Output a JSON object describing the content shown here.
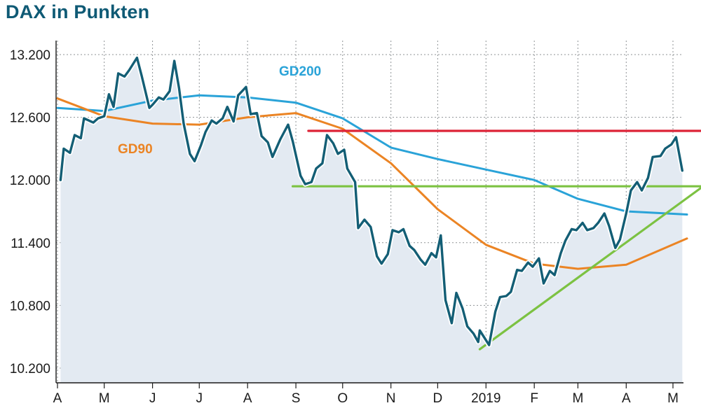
{
  "title": "DAX in Punkten",
  "chart_data": {
    "type": "line",
    "title": "DAX in Punkten",
    "xlabel": "",
    "ylabel": "",
    "x_range": [
      "2018-04-01",
      "2019-05-10"
    ],
    "ylim": [
      10000,
      13450
    ],
    "grid": true,
    "y_ticks": [
      13200,
      12600,
      12000,
      11400,
      10800,
      10200
    ],
    "y_tick_labels": [
      "13.200",
      "12.600",
      "12.000",
      "11.400",
      "10.800",
      "10.200"
    ],
    "x_ticks": [
      {
        "date": "2018-04-01",
        "label": "A"
      },
      {
        "date": "2018-05-01",
        "label": "M"
      },
      {
        "date": "2018-06-01",
        "label": "J"
      },
      {
        "date": "2018-07-01",
        "label": "J"
      },
      {
        "date": "2018-08-01",
        "label": "A"
      },
      {
        "date": "2018-09-01",
        "label": "S"
      },
      {
        "date": "2018-10-01",
        "label": "O"
      },
      {
        "date": "2018-11-01",
        "label": "N"
      },
      {
        "date": "2018-12-01",
        "label": "D"
      },
      {
        "date": "2019-01-01",
        "label": "2019"
      },
      {
        "date": "2019-02-01",
        "label": "F"
      },
      {
        "date": "2019-03-01",
        "label": "M"
      },
      {
        "date": "2019-04-01",
        "label": "A"
      },
      {
        "date": "2019-05-01",
        "label": "M"
      }
    ],
    "series": [
      {
        "name": "DAX",
        "color": "#135e75",
        "points": [
          [
            "2018-04-03",
            12000
          ],
          [
            "2018-04-05",
            12300
          ],
          [
            "2018-04-09",
            12260
          ],
          [
            "2018-04-12",
            12430
          ],
          [
            "2018-04-16",
            12400
          ],
          [
            "2018-04-18",
            12590
          ],
          [
            "2018-04-24",
            12550
          ],
          [
            "2018-04-27",
            12590
          ],
          [
            "2018-05-01",
            12610
          ],
          [
            "2018-05-04",
            12820
          ],
          [
            "2018-05-07",
            12700
          ],
          [
            "2018-05-10",
            13020
          ],
          [
            "2018-05-14",
            12990
          ],
          [
            "2018-05-17",
            13050
          ],
          [
            "2018-05-22",
            13170
          ],
          [
            "2018-05-25",
            13000
          ],
          [
            "2018-05-30",
            12690
          ],
          [
            "2018-06-01",
            12720
          ],
          [
            "2018-06-05",
            12790
          ],
          [
            "2018-06-08",
            12770
          ],
          [
            "2018-06-12",
            12850
          ],
          [
            "2018-06-15",
            13140
          ],
          [
            "2018-06-18",
            12880
          ],
          [
            "2018-06-21",
            12540
          ],
          [
            "2018-06-25",
            12250
          ],
          [
            "2018-06-28",
            12180
          ],
          [
            "2018-07-02",
            12330
          ],
          [
            "2018-07-05",
            12460
          ],
          [
            "2018-07-09",
            12570
          ],
          [
            "2018-07-12",
            12540
          ],
          [
            "2018-07-16",
            12590
          ],
          [
            "2018-07-19",
            12700
          ],
          [
            "2018-07-23",
            12560
          ],
          [
            "2018-07-26",
            12810
          ],
          [
            "2018-07-31",
            12890
          ],
          [
            "2018-08-03",
            12630
          ],
          [
            "2018-08-07",
            12640
          ],
          [
            "2018-08-10",
            12420
          ],
          [
            "2018-08-14",
            12360
          ],
          [
            "2018-08-17",
            12220
          ],
          [
            "2018-08-22",
            12390
          ],
          [
            "2018-08-27",
            12530
          ],
          [
            "2018-08-30",
            12370
          ],
          [
            "2018-09-04",
            12040
          ],
          [
            "2018-09-07",
            11960
          ],
          [
            "2018-09-11",
            11980
          ],
          [
            "2018-09-14",
            12110
          ],
          [
            "2018-09-18",
            12160
          ],
          [
            "2018-09-21",
            12430
          ],
          [
            "2018-09-25",
            12350
          ],
          [
            "2018-09-28",
            12250
          ],
          [
            "2018-10-02",
            12290
          ],
          [
            "2018-10-04",
            12110
          ],
          [
            "2018-10-09",
            11980
          ],
          [
            "2018-10-11",
            11540
          ],
          [
            "2018-10-15",
            11620
          ],
          [
            "2018-10-19",
            11550
          ],
          [
            "2018-10-23",
            11270
          ],
          [
            "2018-10-26",
            11200
          ],
          [
            "2018-10-30",
            11290
          ],
          [
            "2018-11-02",
            11520
          ],
          [
            "2018-11-06",
            11500
          ],
          [
            "2018-11-09",
            11530
          ],
          [
            "2018-11-13",
            11370
          ],
          [
            "2018-11-16",
            11330
          ],
          [
            "2018-11-20",
            11240
          ],
          [
            "2018-11-23",
            11190
          ],
          [
            "2018-11-27",
            11300
          ],
          [
            "2018-11-30",
            11260
          ],
          [
            "2018-12-03",
            11470
          ],
          [
            "2018-12-06",
            10850
          ],
          [
            "2018-12-10",
            10630
          ],
          [
            "2018-12-13",
            10920
          ],
          [
            "2018-12-17",
            10770
          ],
          [
            "2018-12-20",
            10600
          ],
          [
            "2018-12-24",
            10530
          ],
          [
            "2018-12-27",
            10450
          ],
          [
            "2018-12-28",
            10560
          ],
          [
            "2019-01-03",
            10420
          ],
          [
            "2019-01-07",
            10740
          ],
          [
            "2019-01-10",
            10880
          ],
          [
            "2019-01-14",
            10890
          ],
          [
            "2019-01-17",
            10930
          ],
          [
            "2019-01-21",
            11140
          ],
          [
            "2019-01-24",
            11130
          ],
          [
            "2019-01-28",
            11210
          ],
          [
            "2019-01-31",
            11170
          ],
          [
            "2019-02-04",
            11250
          ],
          [
            "2019-02-07",
            11010
          ],
          [
            "2019-02-11",
            11130
          ],
          [
            "2019-02-14",
            11090
          ],
          [
            "2019-02-18",
            11300
          ],
          [
            "2019-02-21",
            11420
          ],
          [
            "2019-02-25",
            11530
          ],
          [
            "2019-02-28",
            11520
          ],
          [
            "2019-03-04",
            11590
          ],
          [
            "2019-03-07",
            11520
          ],
          [
            "2019-03-11",
            11540
          ],
          [
            "2019-03-14",
            11590
          ],
          [
            "2019-03-18",
            11680
          ],
          [
            "2019-03-21",
            11560
          ],
          [
            "2019-03-25",
            11350
          ],
          [
            "2019-03-28",
            11430
          ],
          [
            "2019-04-01",
            11680
          ],
          [
            "2019-04-04",
            11900
          ],
          [
            "2019-04-08",
            11980
          ],
          [
            "2019-04-11",
            11900
          ],
          [
            "2019-04-15",
            12020
          ],
          [
            "2019-04-18",
            12220
          ],
          [
            "2019-04-23",
            12230
          ],
          [
            "2019-04-26",
            12300
          ],
          [
            "2019-04-30",
            12340
          ],
          [
            "2019-05-03",
            12410
          ],
          [
            "2019-05-07",
            12090
          ]
        ]
      },
      {
        "name": "GD200",
        "color": "#2aa3d8",
        "points": [
          [
            "2018-04-01",
            12690
          ],
          [
            "2018-05-01",
            12660
          ],
          [
            "2018-06-01",
            12760
          ],
          [
            "2018-07-01",
            12810
          ],
          [
            "2018-08-01",
            12790
          ],
          [
            "2018-09-01",
            12740
          ],
          [
            "2018-10-01",
            12590
          ],
          [
            "2018-11-01",
            12310
          ],
          [
            "2018-12-01",
            12200
          ],
          [
            "2019-01-01",
            12100
          ],
          [
            "2019-02-01",
            12000
          ],
          [
            "2019-03-01",
            11820
          ],
          [
            "2019-04-01",
            11700
          ],
          [
            "2019-05-10",
            11670
          ]
        ]
      },
      {
        "name": "GD90",
        "color": "#eb8424",
        "points": [
          [
            "2018-04-01",
            12780
          ],
          [
            "2018-05-01",
            12610
          ],
          [
            "2018-06-01",
            12540
          ],
          [
            "2018-07-01",
            12530
          ],
          [
            "2018-08-01",
            12600
          ],
          [
            "2018-09-01",
            12640
          ],
          [
            "2018-10-01",
            12490
          ],
          [
            "2018-11-01",
            12160
          ],
          [
            "2018-12-01",
            11720
          ],
          [
            "2019-01-01",
            11380
          ],
          [
            "2019-02-01",
            11200
          ],
          [
            "2019-03-01",
            11150
          ],
          [
            "2019-04-01",
            11190
          ],
          [
            "2019-05-10",
            11440
          ]
        ]
      }
    ],
    "annotations": [
      {
        "name": "resistance-line",
        "color": "#dd2236",
        "points": [
          [
            "2018-09-09",
            12470
          ],
          [
            "2019-05-20",
            12470
          ]
        ]
      },
      {
        "name": "support-line",
        "color": "#7cc242",
        "points": [
          [
            "2018-08-30",
            11940
          ],
          [
            "2019-05-25",
            11940
          ]
        ]
      },
      {
        "name": "trend-line",
        "color": "#7cc242",
        "points": [
          [
            "2018-12-28",
            10380
          ],
          [
            "2019-05-25",
            11990
          ]
        ]
      }
    ],
    "legend": [
      {
        "label": "GD200",
        "color": "#2aa3d8"
      },
      {
        "label": "GD90",
        "color": "#eb8424"
      }
    ]
  }
}
